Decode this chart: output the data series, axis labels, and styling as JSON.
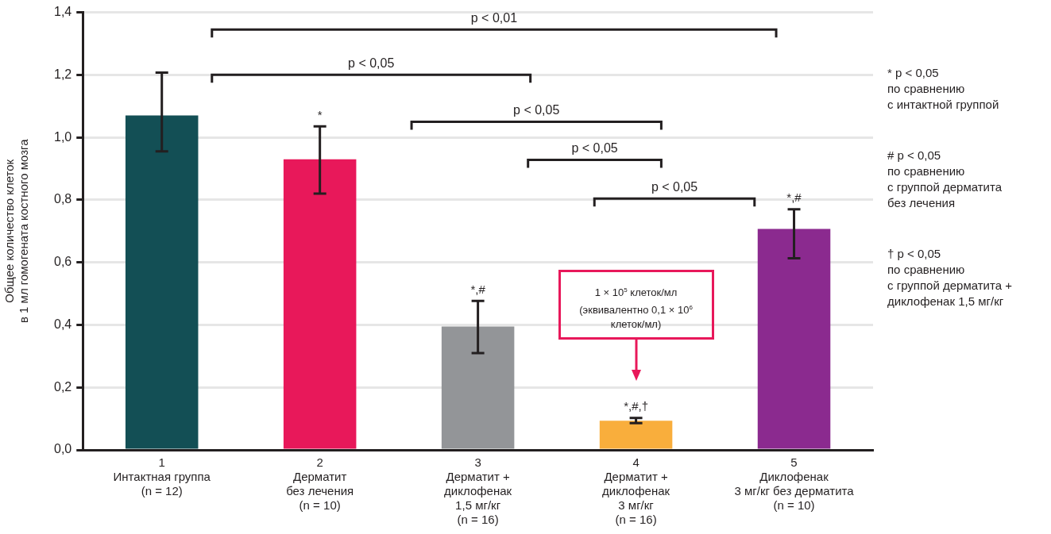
{
  "chart_data": {
    "type": "bar",
    "ylabel": "Общее количество клеток\nв 1 мл гомогената костного мозга",
    "categories": [
      "1\nИнтактная группа\n(n = 12)",
      "2\nДерматит\nбез лечения\n(n = 10)",
      "3\nДерматит +\nдиклофенак\n1,5 мг/кг\n(n = 16)",
      "4\nДерматит +\nдиклофенак\n3 мг/кг\n(n = 16)",
      "5\nДиклофенак\n3 мг/кг без дерматита\n(n = 10)"
    ],
    "values": [
      1.07,
      0.93,
      0.395,
      0.093,
      0.707
    ],
    "colors": [
      "#134f55",
      "#e8185a",
      "#939598",
      "#f9ae3c",
      "#8b2a8f"
    ],
    "errors": [
      [
        0.955,
        1.207
      ],
      [
        0.82,
        1.035
      ],
      [
        0.31,
        0.477
      ],
      [
        0.086,
        0.102
      ],
      [
        0.613,
        0.77
      ]
    ],
    "ylim": [
      0,
      1.4
    ],
    "yticks": [
      {
        "value": 0,
        "label": "0,0"
      },
      {
        "value": 0.2,
        "label": "0,2"
      },
      {
        "value": 0.4,
        "label": "0,4"
      },
      {
        "value": 0.6,
        "label": "0,6"
      },
      {
        "value": 0.8,
        "label": "0,8"
      },
      {
        "value": 1,
        "label": "1,0"
      },
      {
        "value": 1.2,
        "label": "1,2"
      },
      {
        "value": 1.4,
        "label": "1,4"
      }
    ],
    "grid": "y",
    "legend": false,
    "annotations": [
      "p < 0,01",
      "p < 0,05",
      "p < 0,05",
      "p < 0,05",
      "p < 0,05",
      "*",
      "*,#",
      "*,#,†",
      "*,#",
      "1 × 10$^{5}$ клеток/мл\n(эквивалентно 0,1 × 10$^{6}$\nклеток/мл)",
      "* p < 0,05\nпо сравнению\nс интактной группой",
      "# p < 0,05\nпо сравнению\nс группой дерматита\nбез лечения",
      "† p < 0,05\nпо сравнению\nс группой дерматита +\nдиклофенак 1,5 мг/кг"
    ]
  }
}
